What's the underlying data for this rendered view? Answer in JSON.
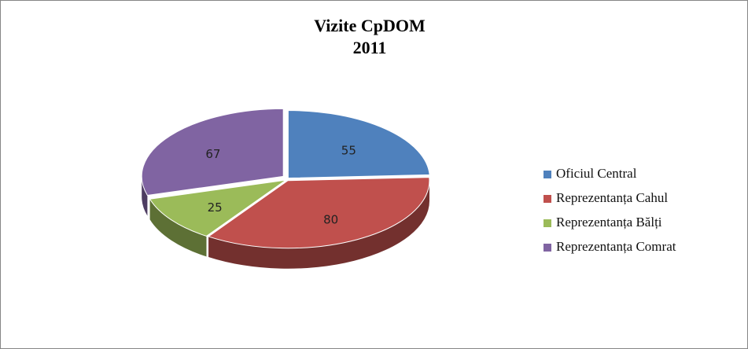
{
  "chart_data": {
    "type": "pie",
    "title": "Vizite CpDOM",
    "subtitle": "2011",
    "categories": [
      "Oficiul Central",
      "Reprezentanța Cahul",
      "Reprezentanța Bălți",
      "Reprezentanța Comrat"
    ],
    "values": [
      55,
      80,
      25,
      67
    ],
    "colors": [
      "#4f81bd",
      "#c0504d",
      "#9bbb59",
      "#8064a2"
    ],
    "legend": "right"
  }
}
